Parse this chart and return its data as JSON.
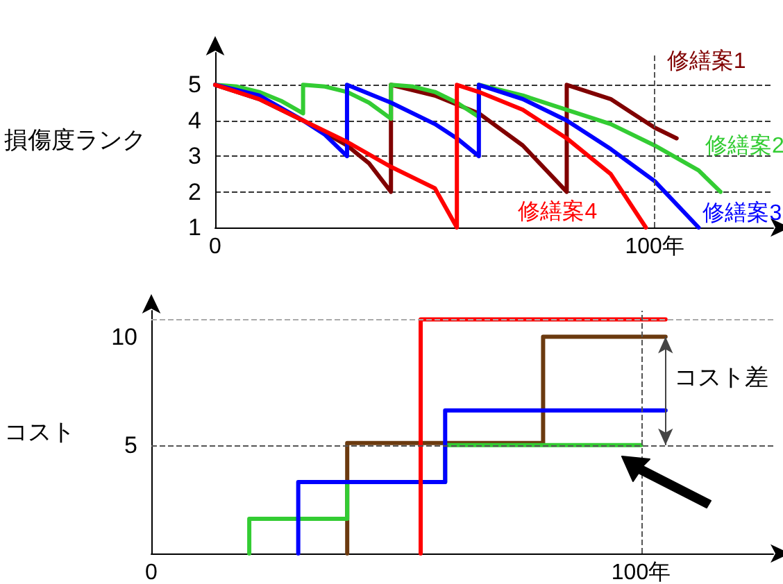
{
  "chart_data": [
    {
      "type": "line",
      "ylabel": "損傷度ランク",
      "xlim": [
        0,
        127
      ],
      "xticks": [
        0,
        {
          "value": 100,
          "label": "100年"
        }
      ],
      "ylim": [
        1,
        5.9
      ],
      "yticks": [
        1,
        2,
        3,
        4,
        5
      ],
      "grid": "y",
      "marker": "none",
      "line_style": "solid",
      "ref_lines": [
        {
          "axis": "x",
          "value": 100,
          "color": "#555555",
          "line_style": "dashed"
        }
      ],
      "series": [
        {
          "name": "修繕案1",
          "color": "#800000",
          "x": [
            0,
            10,
            20,
            30,
            35,
            40,
            40,
            50,
            60,
            70,
            80,
            80,
            90,
            95,
            100,
            105
          ],
          "values": [
            5,
            4.6,
            4.0,
            3.3,
            2.8,
            2,
            5,
            4.7,
            4.2,
            3.3,
            2,
            5,
            4.6,
            4.2,
            3.8,
            3.5
          ]
        },
        {
          "name": "修繕案2",
          "color": "#33cc33",
          "x": [
            0,
            5,
            10,
            15,
            20,
            20,
            25,
            30,
            35,
            40,
            40,
            45,
            50,
            55,
            60,
            60,
            70,
            80,
            90,
            100,
            110,
            115
          ],
          "values": [
            5,
            4.95,
            4.8,
            4.55,
            4.2,
            5,
            4.95,
            4.8,
            4.5,
            4.05,
            5,
            4.95,
            4.8,
            4.5,
            4.1,
            5,
            4.7,
            4.3,
            3.9,
            3.3,
            2.6,
            2
          ]
        },
        {
          "name": "修繕案3",
          "color": "#0000ff",
          "x": [
            0,
            10,
            20,
            25,
            30,
            30,
            40,
            50,
            55,
            60,
            60,
            70,
            80,
            90,
            100,
            110
          ],
          "values": [
            5,
            4.7,
            4.0,
            3.6,
            3,
            5,
            4.5,
            3.9,
            3.5,
            3,
            5,
            4.6,
            4.0,
            3.2,
            2.3,
            1
          ]
        },
        {
          "name": "修繕案4",
          "color": "#ff0000",
          "x": [
            0,
            10,
            20,
            30,
            40,
            50,
            55,
            55,
            60,
            70,
            80,
            90,
            98
          ],
          "values": [
            5,
            4.6,
            4.0,
            3.4,
            2.7,
            2.1,
            1,
            5,
            4.8,
            4.3,
            3.5,
            2.5,
            1
          ]
        }
      ]
    },
    {
      "type": "line",
      "ylabel": "コスト",
      "xlim": [
        0,
        127
      ],
      "xticks": [
        0,
        {
          "value": 100,
          "label": "100年"
        }
      ],
      "ylim": [
        0,
        11.2
      ],
      "yticks": [
        5,
        10
      ],
      "marker": "none",
      "line_style": "solid",
      "ref_lines": [
        {
          "axis": "y",
          "value": 5,
          "color": "#555555",
          "line_style": "dashed"
        },
        {
          "axis": "y",
          "value": 10.8,
          "color": "#aaaaaa",
          "line_style": "dashed"
        },
        {
          "axis": "x",
          "value": 100,
          "color": "#555555",
          "line_style": "dashed"
        }
      ],
      "annotations": [
        "コスト差"
      ],
      "series": [
        {
          "color": "#6b3a0f",
          "x": [
            40,
            40,
            80,
            80,
            105
          ],
          "values": [
            0,
            5.1,
            5.1,
            10,
            10
          ]
        },
        {
          "color": "#33cc33",
          "x": [
            20,
            20,
            40,
            40,
            60,
            60,
            100
          ],
          "values": [
            0,
            1.6,
            1.6,
            3.3,
            3.3,
            5,
            5
          ]
        },
        {
          "color": "#0000ff",
          "x": [
            30,
            30,
            60,
            60,
            105
          ],
          "values": [
            0,
            3.3,
            3.3,
            6.6,
            6.6
          ]
        },
        {
          "color": "#ff0000",
          "x": [
            55,
            55,
            105
          ],
          "values": [
            0,
            10.8,
            10.8
          ]
        }
      ]
    }
  ]
}
